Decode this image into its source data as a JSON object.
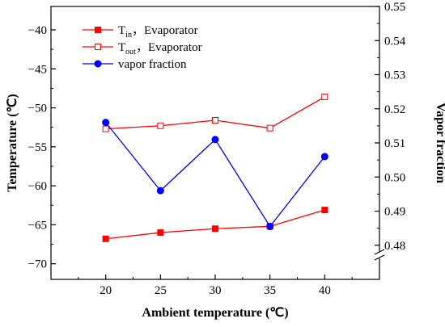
{
  "chart_data": {
    "type": "line",
    "x": [
      20,
      25,
      30,
      35,
      40
    ],
    "xlabel": "Ambient temperature (℃)",
    "ylabel": "Temperature (℃)",
    "y2label": "Vapor fraction",
    "xlim": [
      15,
      45
    ],
    "ylim": [
      -72,
      -37
    ],
    "y2lim": [
      0.47,
      0.55
    ],
    "y2_axis_break": true,
    "x_ticks": [
      "20",
      "25",
      "30",
      "35",
      "40"
    ],
    "y_ticks": [
      "-40",
      "-45",
      "-50",
      "-55",
      "-60",
      "-65",
      "-70"
    ],
    "y2_ticks": [
      "0.48",
      "0.49",
      "0.50",
      "0.51",
      "0.52",
      "0.53",
      "0.54",
      "0.55"
    ],
    "grid": false,
    "legend_position": "top-left",
    "series": [
      {
        "name_main": "T",
        "name_sub": "in",
        "name_suffix": "，Evaporator",
        "axis": "left",
        "color": "#ff0000",
        "marker": "filled-square",
        "values": [
          -66.8,
          -66.0,
          -65.5,
          -65.2,
          -63.1
        ]
      },
      {
        "name_main": "T",
        "name_sub": "out",
        "name_suffix": "，Evaporator",
        "axis": "left",
        "color": "#ff0000",
        "marker": "open-square",
        "values": [
          -52.7,
          -52.3,
          -51.6,
          -52.6,
          -48.6
        ]
      },
      {
        "name": "vapor fraction",
        "axis": "right",
        "color": "#0000ff",
        "marker": "filled-circle",
        "values": [
          0.516,
          0.496,
          0.511,
          0.4855,
          0.506
        ]
      }
    ]
  }
}
